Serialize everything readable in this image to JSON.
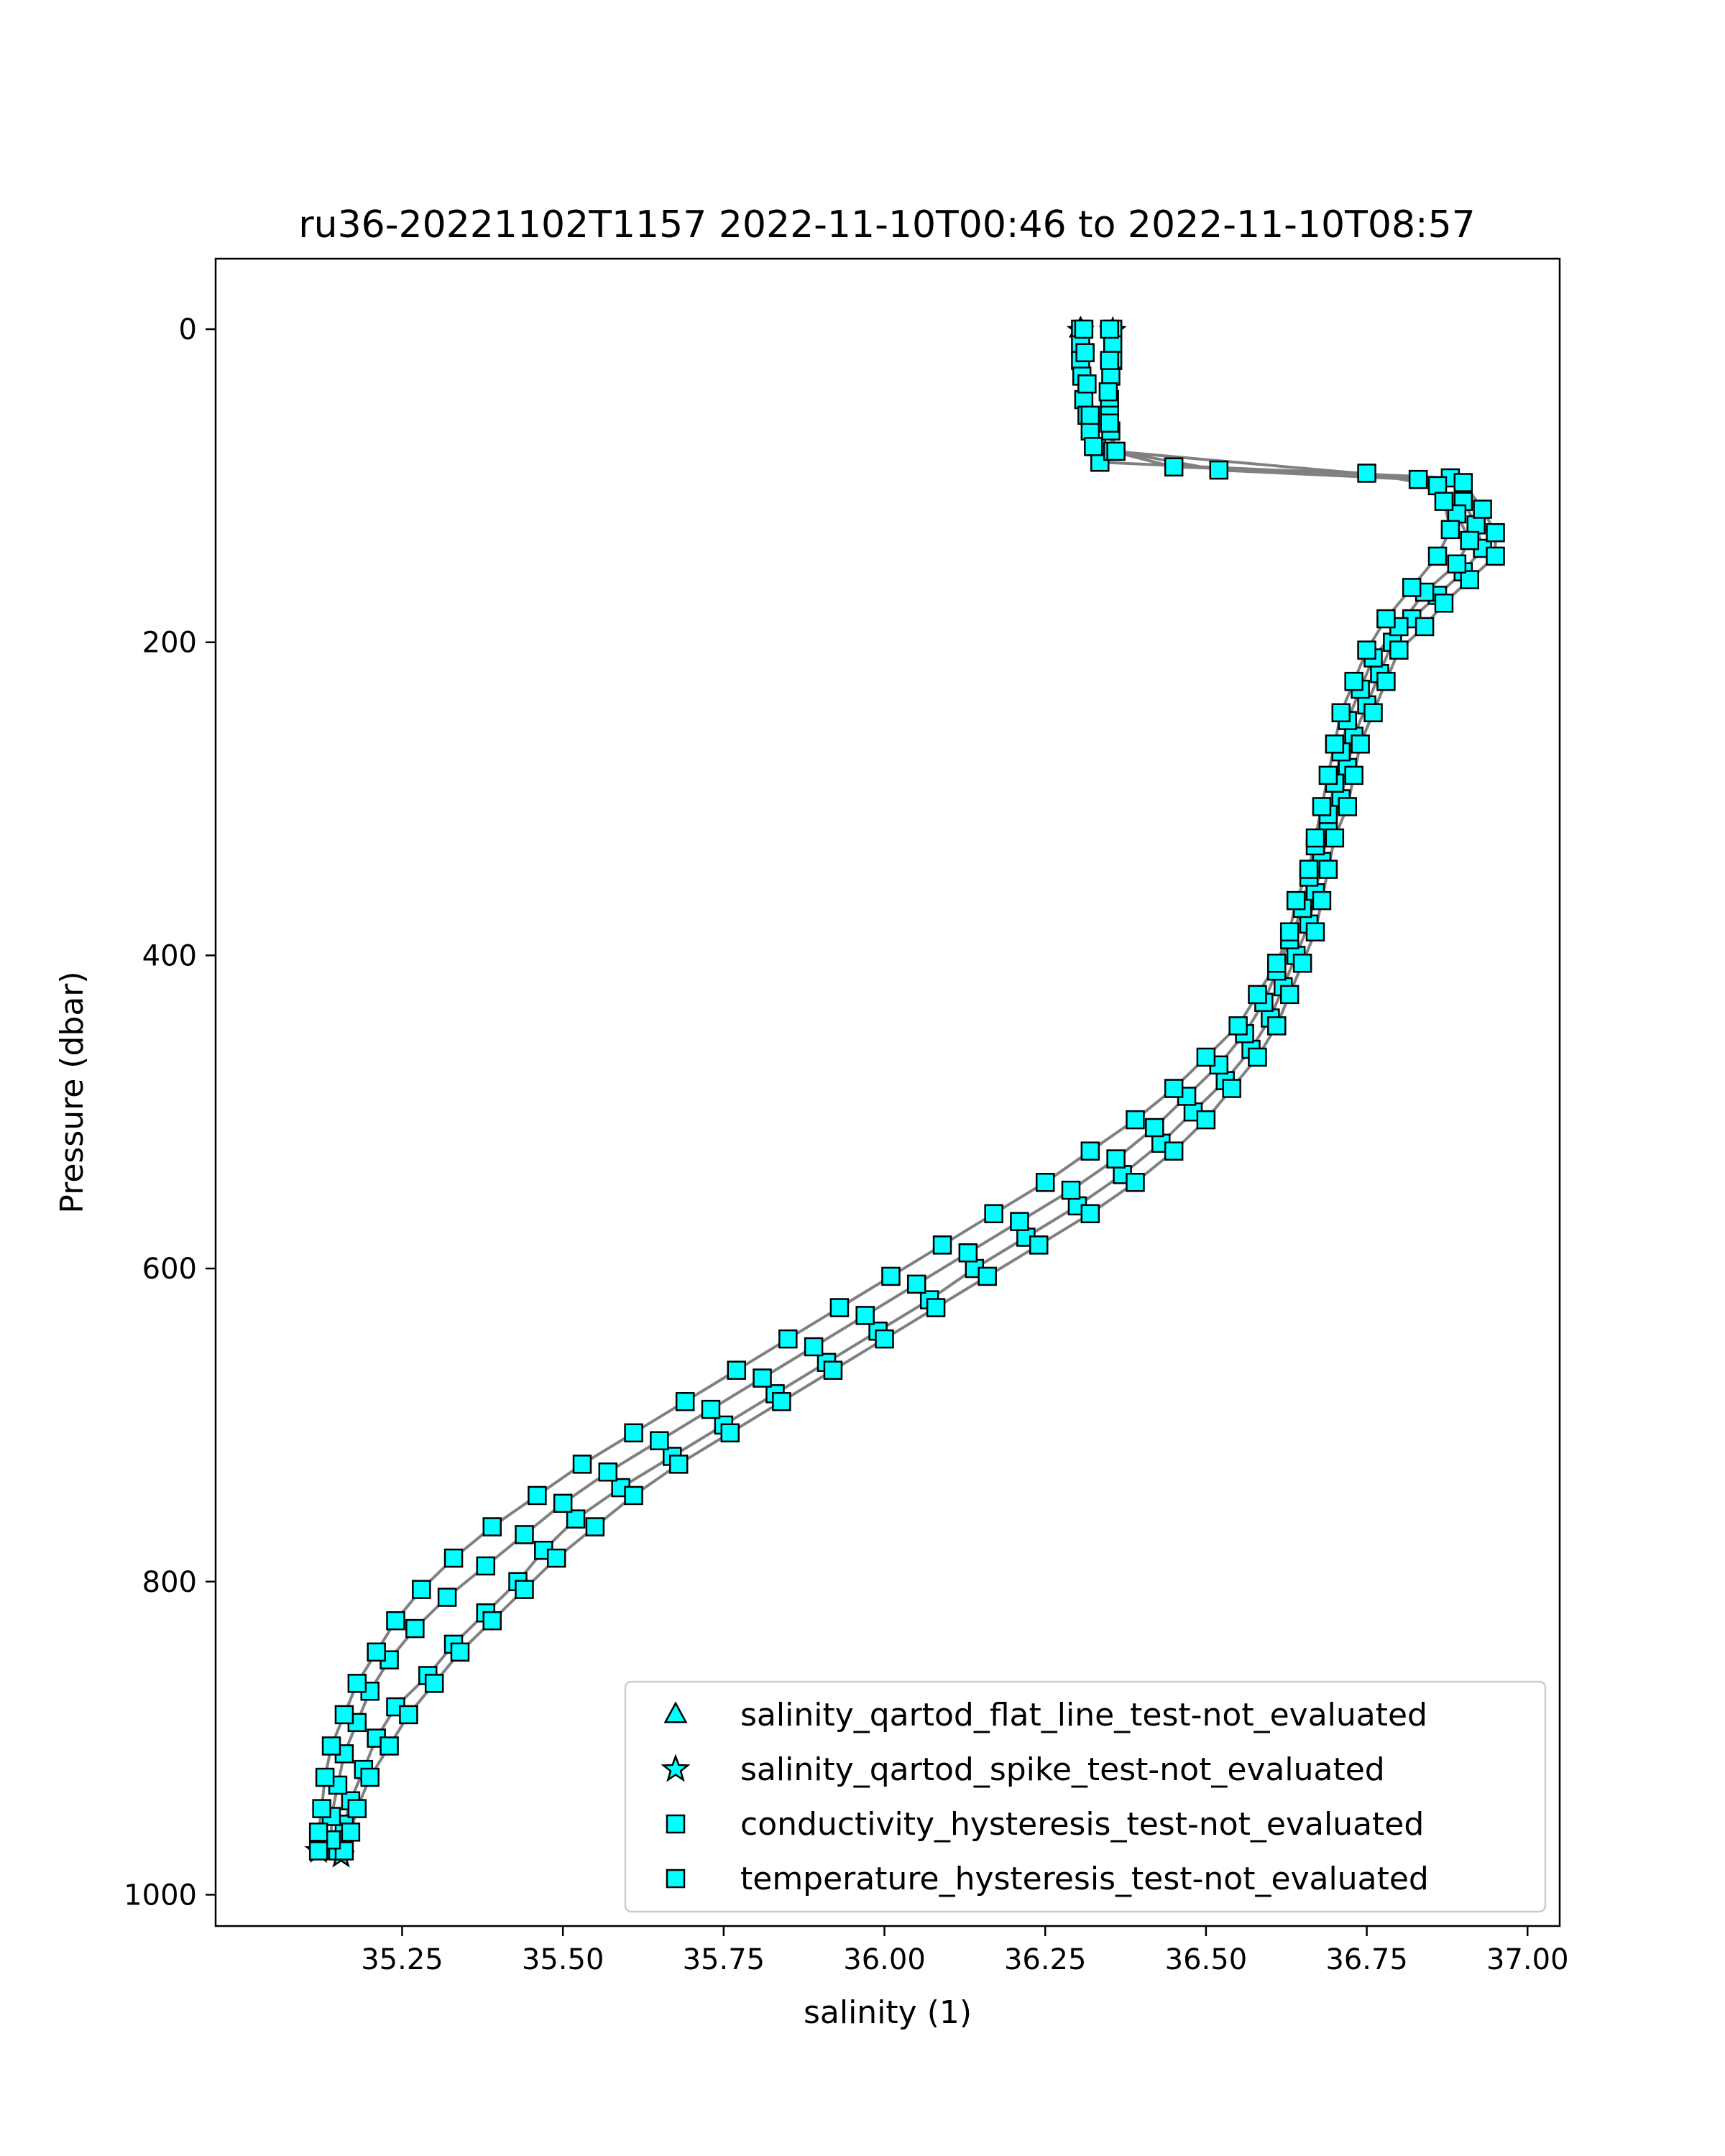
{
  "chart_data": {
    "type": "scatter",
    "title": "ru36-20221102T1157 2022-11-10T00:46 to 2022-11-10T08:57",
    "xlabel": "salinity (1)",
    "ylabel": "Pressure (dbar)",
    "xlim": [
      34.96,
      37.05
    ],
    "ylim": [
      1020,
      -45
    ],
    "y_inverted": true,
    "xticks": [
      35.25,
      35.5,
      35.75,
      36.0,
      36.25,
      36.5,
      36.75,
      37.0
    ],
    "xtick_labels": [
      "35.25",
      "35.50",
      "35.75",
      "36.00",
      "36.25",
      "36.50",
      "36.75",
      "37.00"
    ],
    "yticks": [
      0,
      200,
      400,
      600,
      800,
      1000
    ],
    "ytick_labels": [
      "0",
      "200",
      "400",
      "600",
      "800",
      "1000"
    ],
    "grid": false,
    "legend_position": "lower-right",
    "colors": {
      "profile_line": "#808080",
      "marker_fill": "#00ffff",
      "marker_edge": "#000000"
    },
    "legend": [
      {
        "label": "salinity_qartod_flat_line_test-not_evaluated",
        "marker": "triangle"
      },
      {
        "label": "salinity_qartod_spike_test-not_evaluated",
        "marker": "star"
      },
      {
        "label": "conductivity_hysteresis_test-not_evaluated",
        "marker": "square"
      },
      {
        "label": "temperature_hysteresis_test-not_evaluated",
        "marker": "square"
      }
    ],
    "series": [
      {
        "values": [
          [
            36.305,
            0
          ],
          [
            36.305,
            10
          ],
          [
            36.305,
            20
          ],
          [
            36.307,
            30
          ],
          [
            36.31,
            45
          ],
          [
            36.315,
            55
          ],
          [
            36.32,
            65
          ],
          [
            36.33,
            75
          ],
          [
            36.335,
            85
          ],
          [
            36.88,
            95
          ],
          [
            36.9,
            110
          ],
          [
            36.92,
            125
          ],
          [
            36.93,
            140
          ],
          [
            36.9,
            155
          ],
          [
            36.86,
            170
          ],
          [
            36.82,
            185
          ],
          [
            36.79,
            200
          ],
          [
            36.77,
            220
          ],
          [
            36.75,
            240
          ],
          [
            36.73,
            260
          ],
          [
            36.72,
            280
          ],
          [
            36.71,
            300
          ],
          [
            36.69,
            320
          ],
          [
            36.68,
            340
          ],
          [
            36.67,
            360
          ],
          [
            36.66,
            380
          ],
          [
            36.64,
            400
          ],
          [
            36.62,
            420
          ],
          [
            36.6,
            440
          ],
          [
            36.57,
            460
          ],
          [
            36.53,
            480
          ],
          [
            36.48,
            500
          ],
          [
            36.43,
            520
          ],
          [
            36.37,
            540
          ],
          [
            36.3,
            560
          ],
          [
            36.22,
            580
          ],
          [
            36.14,
            600
          ],
          [
            36.07,
            620
          ],
          [
            35.99,
            640
          ],
          [
            35.91,
            660
          ],
          [
            35.83,
            680
          ],
          [
            35.75,
            700
          ],
          [
            35.67,
            720
          ],
          [
            35.59,
            740
          ],
          [
            35.52,
            760
          ],
          [
            35.47,
            780
          ],
          [
            35.43,
            800
          ],
          [
            35.38,
            820
          ],
          [
            35.33,
            840
          ],
          [
            35.29,
            860
          ],
          [
            35.24,
            880
          ],
          [
            35.21,
            900
          ],
          [
            35.19,
            920
          ],
          [
            35.17,
            940
          ],
          [
            35.16,
            955
          ],
          [
            35.15,
            965
          ],
          [
            35.15,
            972
          ]
        ]
      },
      {
        "values": [
          [
            36.355,
            0
          ],
          [
            36.355,
            10
          ],
          [
            36.355,
            20
          ],
          [
            36.352,
            30
          ],
          [
            36.35,
            45
          ],
          [
            36.35,
            55
          ],
          [
            36.352,
            65
          ],
          [
            36.355,
            78
          ],
          [
            36.9,
            98
          ],
          [
            36.93,
            115
          ],
          [
            36.95,
            130
          ],
          [
            36.95,
            145
          ],
          [
            36.91,
            160
          ],
          [
            36.87,
            175
          ],
          [
            36.84,
            190
          ],
          [
            36.8,
            205
          ],
          [
            36.78,
            225
          ],
          [
            36.76,
            245
          ],
          [
            36.74,
            265
          ],
          [
            36.73,
            285
          ],
          [
            36.72,
            305
          ],
          [
            36.7,
            325
          ],
          [
            36.69,
            345
          ],
          [
            36.68,
            365
          ],
          [
            36.67,
            385
          ],
          [
            36.65,
            405
          ],
          [
            36.63,
            425
          ],
          [
            36.61,
            445
          ],
          [
            36.58,
            465
          ],
          [
            36.54,
            485
          ],
          [
            36.5,
            505
          ],
          [
            36.45,
            525
          ],
          [
            36.39,
            545
          ],
          [
            36.32,
            565
          ],
          [
            36.24,
            585
          ],
          [
            36.16,
            605
          ],
          [
            36.08,
            625
          ],
          [
            36.0,
            645
          ],
          [
            35.92,
            665
          ],
          [
            35.84,
            685
          ],
          [
            35.76,
            705
          ],
          [
            35.68,
            725
          ],
          [
            35.61,
            745
          ],
          [
            35.55,
            765
          ],
          [
            35.49,
            785
          ],
          [
            35.44,
            805
          ],
          [
            35.39,
            825
          ],
          [
            35.34,
            845
          ],
          [
            35.3,
            865
          ],
          [
            35.26,
            885
          ],
          [
            35.23,
            905
          ],
          [
            35.2,
            925
          ],
          [
            35.18,
            945
          ],
          [
            35.17,
            960
          ],
          [
            35.16,
            972
          ]
        ]
      },
      {
        "values": [
          [
            36.31,
            0
          ],
          [
            36.312,
            15
          ],
          [
            36.315,
            35
          ],
          [
            36.32,
            55
          ],
          [
            36.325,
            75
          ],
          [
            36.45,
            88
          ],
          [
            36.75,
            92
          ],
          [
            36.86,
            100
          ],
          [
            36.89,
            118
          ],
          [
            36.91,
            135
          ],
          [
            36.89,
            150
          ],
          [
            36.84,
            168
          ],
          [
            36.8,
            190
          ],
          [
            36.76,
            210
          ],
          [
            36.74,
            230
          ],
          [
            36.72,
            250
          ],
          [
            36.71,
            270
          ],
          [
            36.7,
            290
          ],
          [
            36.69,
            310
          ],
          [
            36.67,
            330
          ],
          [
            36.66,
            350
          ],
          [
            36.65,
            370
          ],
          [
            36.63,
            390
          ],
          [
            36.61,
            410
          ],
          [
            36.59,
            430
          ],
          [
            36.56,
            450
          ],
          [
            36.52,
            470
          ],
          [
            36.47,
            490
          ],
          [
            36.42,
            510
          ],
          [
            36.36,
            530
          ],
          [
            36.29,
            550
          ],
          [
            36.21,
            570
          ],
          [
            36.13,
            590
          ],
          [
            36.05,
            610
          ],
          [
            35.97,
            630
          ],
          [
            35.89,
            650
          ],
          [
            35.81,
            670
          ],
          [
            35.73,
            690
          ],
          [
            35.65,
            710
          ],
          [
            35.57,
            730
          ],
          [
            35.5,
            750
          ],
          [
            35.44,
            770
          ],
          [
            35.38,
            790
          ],
          [
            35.32,
            810
          ],
          [
            35.27,
            830
          ],
          [
            35.23,
            850
          ],
          [
            35.2,
            870
          ],
          [
            35.18,
            890
          ],
          [
            35.16,
            910
          ],
          [
            35.15,
            930
          ],
          [
            35.14,
            950
          ],
          [
            35.14,
            965
          ]
        ]
      },
      {
        "values": [
          [
            36.35,
            0
          ],
          [
            36.35,
            20
          ],
          [
            36.348,
            40
          ],
          [
            36.35,
            60
          ],
          [
            36.36,
            78
          ],
          [
            36.52,
            90
          ],
          [
            36.83,
            96
          ],
          [
            36.87,
            110
          ],
          [
            36.88,
            128
          ],
          [
            36.86,
            145
          ],
          [
            36.82,
            165
          ],
          [
            36.78,
            185
          ],
          [
            36.75,
            205
          ],
          [
            36.73,
            225
          ],
          [
            36.71,
            245
          ],
          [
            36.7,
            265
          ],
          [
            36.69,
            285
          ],
          [
            36.68,
            305
          ],
          [
            36.67,
            325
          ],
          [
            36.66,
            345
          ],
          [
            36.64,
            365
          ],
          [
            36.63,
            385
          ],
          [
            36.61,
            405
          ],
          [
            36.58,
            425
          ],
          [
            36.55,
            445
          ],
          [
            36.5,
            465
          ],
          [
            36.45,
            485
          ],
          [
            36.39,
            505
          ],
          [
            36.32,
            525
          ],
          [
            36.25,
            545
          ],
          [
            36.17,
            565
          ],
          [
            36.09,
            585
          ],
          [
            36.01,
            605
          ],
          [
            35.93,
            625
          ],
          [
            35.85,
            645
          ],
          [
            35.77,
            665
          ],
          [
            35.69,
            685
          ],
          [
            35.61,
            705
          ],
          [
            35.53,
            725
          ],
          [
            35.46,
            745
          ],
          [
            35.39,
            765
          ],
          [
            35.33,
            785
          ],
          [
            35.28,
            805
          ],
          [
            35.24,
            825
          ],
          [
            35.21,
            845
          ],
          [
            35.18,
            865
          ],
          [
            35.16,
            885
          ],
          [
            35.14,
            905
          ],
          [
            35.13,
            925
          ],
          [
            35.125,
            945
          ],
          [
            35.12,
            960
          ],
          [
            35.12,
            972
          ]
        ]
      }
    ],
    "spike_test_points": [
      [
        36.305,
        1
      ],
      [
        36.355,
        1
      ],
      [
        35.12,
        972
      ],
      [
        35.155,
        975
      ]
    ],
    "flat_line_test_points": [
      [
        36.305,
        0
      ],
      [
        35.14,
        972
      ]
    ]
  }
}
